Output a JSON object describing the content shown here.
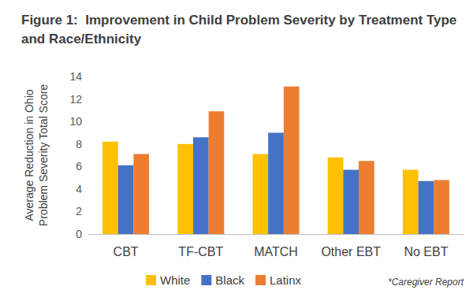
{
  "chart_data": {
    "type": "bar",
    "title": "Figure 1:  Improvement in Child Problem Severity by Treatment Type and Race/Ethnicity",
    "y_label": "Average Reduction in Ohio Problem Severity Total Score",
    "categories": [
      "CBT",
      "TF-CBT",
      "MATCH",
      "Other EBT",
      "No EBT"
    ],
    "series": [
      {
        "name": "White",
        "color": "#FFC000",
        "values": [
          8.2,
          8.0,
          7.1,
          6.8,
          5.7
        ]
      },
      {
        "name": "Black",
        "color": "#4472C4",
        "values": [
          6.1,
          8.6,
          9.0,
          5.7,
          4.7
        ]
      },
      {
        "name": "Latinx",
        "color": "#ED7D31",
        "values": [
          7.1,
          10.9,
          13.1,
          6.5,
          4.8
        ]
      }
    ],
    "ylim": [
      0,
      14
    ],
    "yticks": [
      0,
      2,
      4,
      6,
      8,
      10,
      12,
      14
    ],
    "grid": false,
    "legend": "bottom",
    "annotation": "*Caregiver Report"
  }
}
